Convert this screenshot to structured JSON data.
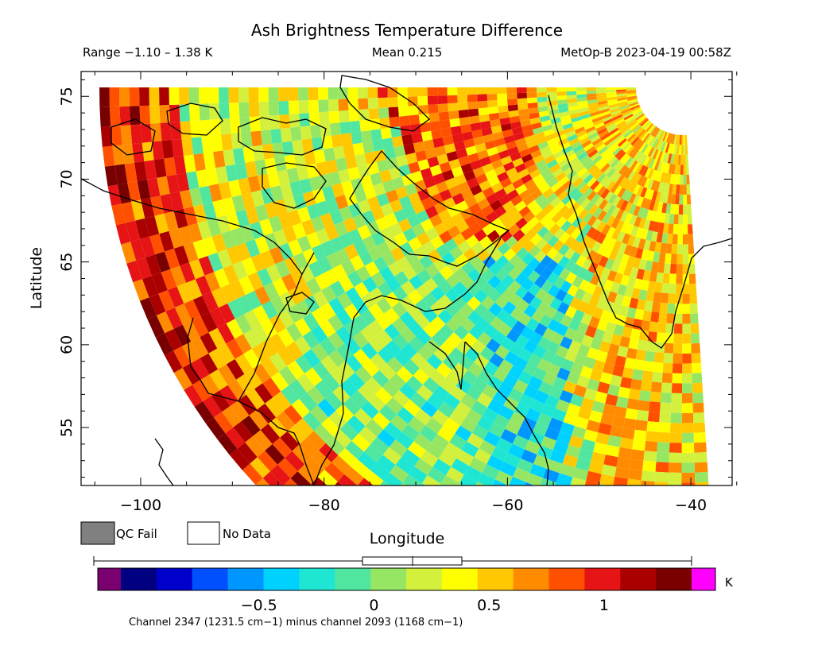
{
  "chart_data": {
    "type": "heatmap",
    "title": "Ash Brightness Temperature Difference",
    "range_label": "Range −1.10 – 1.38 K",
    "mean_label": "Mean 0.215",
    "satellite_label": "MetOp-B 2023-04-19 00:58Z",
    "value_range": [
      -1.1,
      1.38
    ],
    "mean": 0.215,
    "xlabel": "Longitude",
    "ylabel": "Latitude",
    "xlim": [
      -106.5,
      -35.5
    ],
    "ylim": [
      51.5,
      76.5
    ],
    "xticks": [
      -100,
      -80,
      -60,
      -40
    ],
    "xtick_labels": [
      "−100",
      "−80",
      "−60",
      "−40"
    ],
    "yticks": [
      55,
      60,
      65,
      70,
      75
    ],
    "ytick_labels": [
      "55",
      "60",
      "65",
      "70",
      "75"
    ],
    "legend": [
      {
        "label": "QC Fail",
        "color": "#808080"
      },
      {
        "label": "No Data",
        "color": "#ffffff"
      }
    ],
    "colorbar": {
      "unit": "K",
      "range": [
        -1.1,
        1.38
      ],
      "ticks": [
        -0.5,
        0,
        0.5,
        1
      ],
      "tick_labels": [
        "−0.5",
        "0",
        "0.5",
        "1"
      ],
      "under_color": "#7a0070",
      "over_color": "#ff00ff",
      "colors": [
        "#000080",
        "#0000cd",
        "#0050ff",
        "#0096ff",
        "#00d2ff",
        "#1ee6d2",
        "#50e6a0",
        "#96e664",
        "#d2f03c",
        "#ffff00",
        "#ffc800",
        "#ff8c00",
        "#ff5000",
        "#e61414",
        "#aa0000",
        "#780000"
      ],
      "caption": "Channel 2347 (1231.5 cm−1) minus channel 2093 (1168 cm−1)"
    },
    "field_summary": {
      "north_region_mean": 0.25,
      "northeast_band_mean": 0.75,
      "southwest_edge_mean": 1.0,
      "central_south_mean": 0.05,
      "east_strip_mean": 0.45
    }
  }
}
